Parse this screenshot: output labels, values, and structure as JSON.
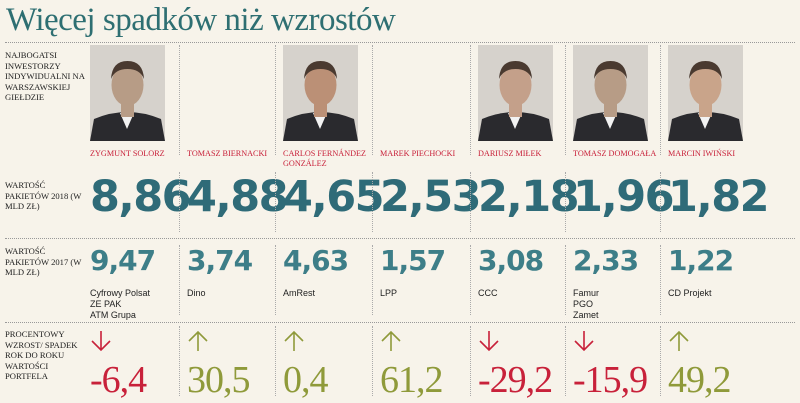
{
  "title": "Więcej spadków niż wzrostów",
  "labels": {
    "header": "Najbogatsi inwestorzy indywidualni na Warszawskiej Giełdzie",
    "value_2018": "Wartość pakietów 2018 (w mld zł)",
    "value_2017": "Wartość pakietów 2017 (w mld zł)",
    "change": "Procentowy wzrost/ spadek rok do roku wartości portfela"
  },
  "colors": {
    "title": "#2e6f72",
    "name": "#c8213a",
    "value": "#2f6b78",
    "down": "#c8213a",
    "up": "#8f9a3a"
  },
  "investors": [
    {
      "name": "Zygmunt Solorz",
      "v2018": "8,86",
      "v2017": "9,47",
      "companies": [
        "Cyfrowy Polsat",
        "ZE PAK",
        "ATM Grupa"
      ],
      "direction": "down",
      "change": "-6,4",
      "has_photo": true
    },
    {
      "name": "Tomasz Biernacki",
      "v2018": "4,88",
      "v2017": "3,74",
      "companies": [
        "Dino"
      ],
      "direction": "up",
      "change": "30,5",
      "has_photo": false
    },
    {
      "name": "Carlos Fernández González",
      "v2018": "4,65",
      "v2017": "4,63",
      "companies": [
        "AmRest"
      ],
      "direction": "up",
      "change": "0,4",
      "has_photo": true
    },
    {
      "name": "Marek Piechocki",
      "v2018": "2,53",
      "v2017": "1,57",
      "companies": [
        "LPP"
      ],
      "direction": "up",
      "change": "61,2",
      "has_photo": false
    },
    {
      "name": "Dariusz Miłek",
      "v2018": "2,18",
      "v2017": "3,08",
      "companies": [
        "CCC"
      ],
      "direction": "down",
      "change": "-29,2",
      "has_photo": true
    },
    {
      "name": "Tomasz Domogała",
      "v2018": "1,96",
      "v2017": "2,33",
      "companies": [
        "Famur",
        "PGO",
        "Zamet"
      ],
      "direction": "down",
      "change": "-15,9",
      "has_photo": true
    },
    {
      "name": "Marcin Iwiński",
      "v2018": "1,82",
      "v2017": "1,22",
      "companies": [
        "CD Projekt"
      ],
      "direction": "up",
      "change": "49,2",
      "has_photo": true
    }
  ]
}
